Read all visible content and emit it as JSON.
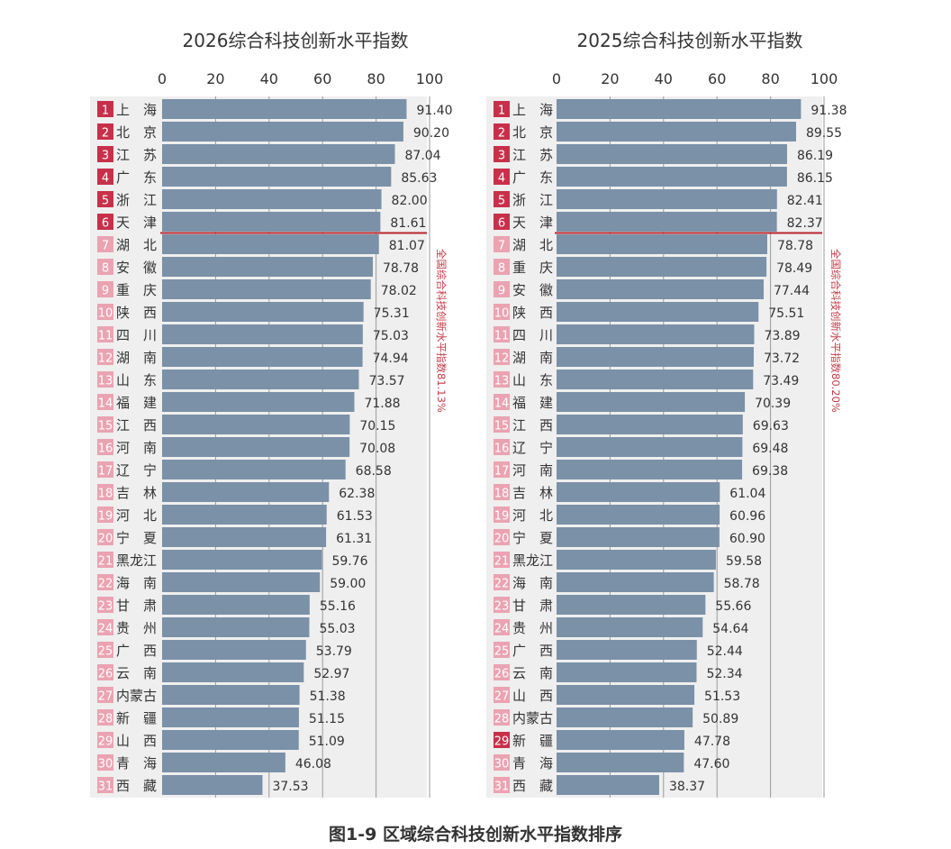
{
  "caption": "图1-9  区域综合科技创新水平指数排序",
  "colors": {
    "bar": "#7a91a8",
    "panel_bg": "#efefef",
    "grid": "#9a9a9a",
    "axis_text": "#333333",
    "rank_top": "#c8304a",
    "rank_rest": "#eba3b1",
    "rank_text": "#ffffff",
    "national_line": "#b8262e",
    "national_text": "#c43a46",
    "title": "#333333"
  },
  "chart_data": [
    {
      "type": "bar",
      "orientation": "horizontal",
      "title": "2026综合科技创新水平指数",
      "xlim": [
        0,
        100
      ],
      "xticks": [
        "0",
        "20",
        "40",
        "60",
        "80",
        "100"
      ],
      "ranks": [
        "1",
        "2",
        "3",
        "4",
        "5",
        "6",
        "7",
        "8",
        "9",
        "10",
        "11",
        "12",
        "13",
        "14",
        "15",
        "16",
        "17",
        "18",
        "19",
        "20",
        "21",
        "22",
        "23",
        "24",
        "25",
        "26",
        "27",
        "28",
        "29",
        "30",
        "31"
      ],
      "top_rank_count": 6,
      "categories": [
        "上　海",
        "北　京",
        "江　苏",
        "广　东",
        "浙　江",
        "天　津",
        "湖　北",
        "安　徽",
        "重　庆",
        "陕　西",
        "四　川",
        "湖　南",
        "山　东",
        "福　建",
        "江　西",
        "河　南",
        "辽　宁",
        "吉　林",
        "河　北",
        "宁　夏",
        "黑龙江",
        "海　南",
        "甘　肃",
        "贵　州",
        "广　西",
        "云　南",
        "内蒙古",
        "新　疆",
        "山　西",
        "青　海",
        "西　藏"
      ],
      "values": [
        91.4,
        90.2,
        87.04,
        85.63,
        82.0,
        81.61,
        81.07,
        78.78,
        78.02,
        75.31,
        75.03,
        74.94,
        73.57,
        71.88,
        70.15,
        70.08,
        68.58,
        62.38,
        61.53,
        61.31,
        59.76,
        59.0,
        55.16,
        55.03,
        53.79,
        52.97,
        51.38,
        51.15,
        51.09,
        46.08,
        37.53
      ],
      "value_labels": [
        "91.40",
        "90.20",
        "87.04",
        "85.63",
        "82.00",
        "81.61",
        "81.07",
        "78.78",
        "78.02",
        "75.31",
        "75.03",
        "74.94",
        "73.57",
        "71.88",
        "70.15",
        "70.08",
        "68.58",
        "62.38",
        "61.53",
        "61.31",
        "59.76",
        "59.00",
        "55.16",
        "55.03",
        "53.79",
        "52.97",
        "51.38",
        "51.15",
        "51.09",
        "46.08",
        "37.53"
      ],
      "national": {
        "value": 81.13,
        "label": "全国综合科技创新水平指数81.13%",
        "line_after_rank": 6
      }
    },
    {
      "type": "bar",
      "orientation": "horizontal",
      "title": "2025综合科技创新水平指数",
      "xlim": [
        0,
        100
      ],
      "xticks": [
        "0",
        "20",
        "40",
        "60",
        "80",
        "100"
      ],
      "ranks": [
        "1",
        "2",
        "3",
        "4",
        "5",
        "6",
        "7",
        "8",
        "9",
        "10",
        "11",
        "12",
        "13",
        "14",
        "15",
        "16",
        "17",
        "18",
        "19",
        "20",
        "21",
        "22",
        "23",
        "24",
        "25",
        "26",
        "27",
        "28",
        "29",
        "30",
        "31"
      ],
      "top_rank_count": 6,
      "highlight_ranks": [
        29
      ],
      "categories": [
        "上　海",
        "北　京",
        "江　苏",
        "广　东",
        "浙　江",
        "天　津",
        "湖　北",
        "重　庆",
        "安　徽",
        "陕　西",
        "四　川",
        "湖　南",
        "山　东",
        "福　建",
        "江　西",
        "辽　宁",
        "河　南",
        "吉　林",
        "河　北",
        "宁　夏",
        "黑龙江",
        "海　南",
        "甘　肃",
        "贵　州",
        "广　西",
        "云　南",
        "山　西",
        "内蒙古",
        "新　疆",
        "青　海",
        "西　藏"
      ],
      "values": [
        91.38,
        89.55,
        86.19,
        86.15,
        82.41,
        82.37,
        78.78,
        78.49,
        77.44,
        75.51,
        73.89,
        73.72,
        73.49,
        70.39,
        69.63,
        69.48,
        69.38,
        61.04,
        60.96,
        60.9,
        59.58,
        58.78,
        55.66,
        54.64,
        52.44,
        52.34,
        51.53,
        50.89,
        47.78,
        47.6,
        38.37
      ],
      "value_labels": [
        "91.38",
        "89.55",
        "86.19",
        "86.15",
        "82.41",
        "82.37",
        "78.78",
        "78.49",
        "77.44",
        "75.51",
        "73.89",
        "73.72",
        "73.49",
        "70.39",
        "69.63",
        "69.48",
        "69.38",
        "61.04",
        "60.96",
        "60.90",
        "59.58",
        "58.78",
        "55.66",
        "54.64",
        "52.44",
        "52.34",
        "51.53",
        "50.89",
        "47.78",
        "47.60",
        "38.37"
      ],
      "national": {
        "value": 80.2,
        "label": "全国综合科技创新水平指数80.20%",
        "line_after_rank": 6
      }
    }
  ]
}
